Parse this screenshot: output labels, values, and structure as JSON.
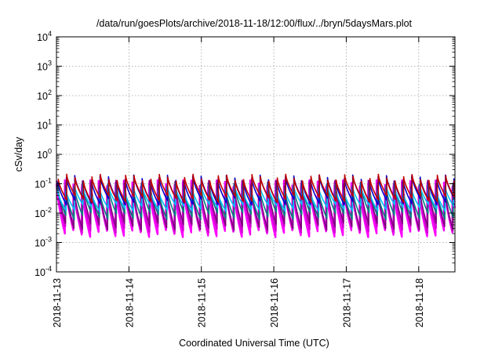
{
  "chart_data": {
    "type": "line",
    "title": "/data/run/goesPlots/archive/2018-11-18/12:00/flux/../bryn/5daysMars.plot",
    "xlabel": "Coordinated Universal Time (UTC)",
    "ylabel": "cSv/day",
    "yscale": "log",
    "ylim": [
      0.0001,
      10000
    ],
    "xlim": [
      "2018-11-13 00:00",
      "2018-11-18 12:00"
    ],
    "grid": true,
    "x_ticks": [
      "2018-11-13",
      "2018-11-14",
      "2018-11-15",
      "2018-11-16",
      "2018-11-17",
      "2018-11-18"
    ],
    "y_ticks": [
      {
        "base": "10",
        "exp": "-4",
        "value": 0.0001
      },
      {
        "base": "10",
        "exp": "-3",
        "value": 0.001
      },
      {
        "base": "10",
        "exp": "-2",
        "value": 0.01
      },
      {
        "base": "10",
        "exp": "-1",
        "value": 0.1
      },
      {
        "base": "10",
        "exp": "0",
        "value": 1
      },
      {
        "base": "10",
        "exp": "1",
        "value": 10
      },
      {
        "base": "10",
        "exp": "2",
        "value": 100
      },
      {
        "base": "10",
        "exp": "3",
        "value": 1000
      },
      {
        "base": "10",
        "exp": "4",
        "value": 10000
      }
    ],
    "pattern": {
      "cycles_per_day": 8.6,
      "peak_value": 0.12,
      "trough_value": 0.003
    },
    "series": [
      {
        "color": "#ff00ff",
        "peak": 0.1,
        "trough": 0.002
      },
      {
        "color": "#d400d4",
        "peak": 0.1,
        "trough": 0.0028
      },
      {
        "color": "#800080",
        "peak": 0.1,
        "trough": 0.0035
      },
      {
        "color": "#008080",
        "peak": 0.08,
        "trough": 0.008
      },
      {
        "color": "#00bfff",
        "peak": 0.07,
        "trough": 0.015
      },
      {
        "color": "#0000cd",
        "peak": 0.15,
        "trough": 0.025
      },
      {
        "color": "#c00000",
        "peak": 0.16,
        "trough": 0.03
      }
    ]
  }
}
